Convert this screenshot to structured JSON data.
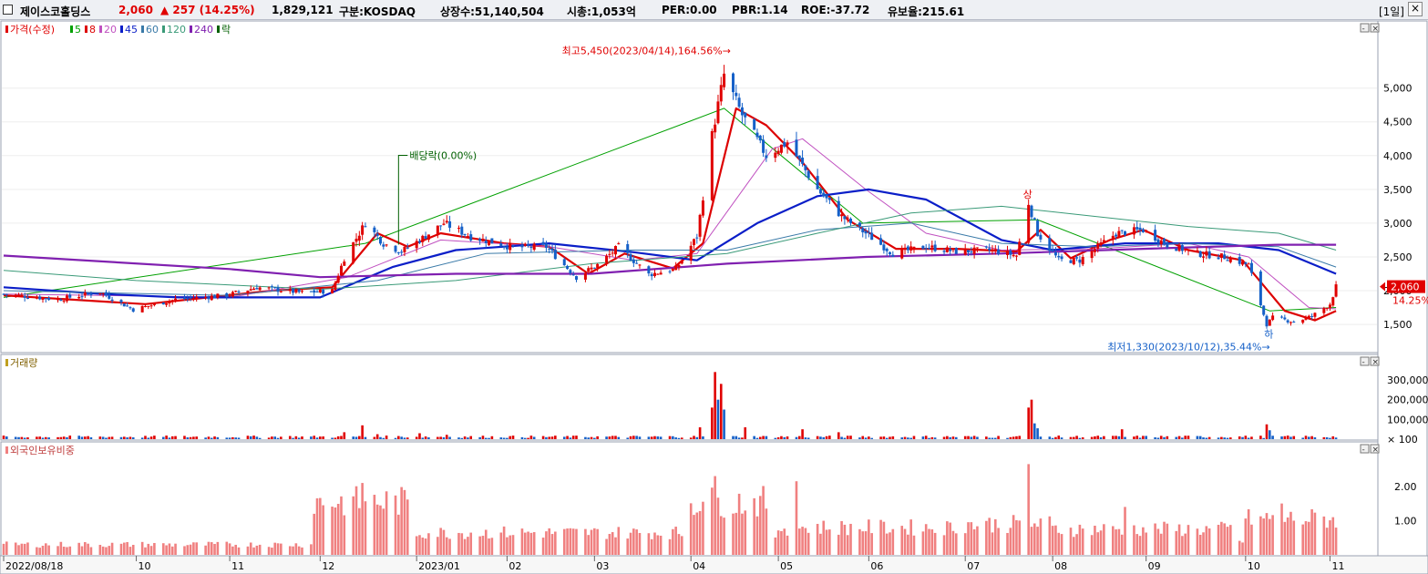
{
  "header": {
    "stock_name": "제이스코홀딩스",
    "price": "2,060",
    "change": "▲ 257 (14.25%)",
    "volume": "1,829,121",
    "market": "구분:KOSDAQ",
    "shares": "상장수:51,140,504",
    "market_cap": "시총:1,053억",
    "per": "PER:0.00",
    "pbr": "PBR:1.14",
    "roe": "ROE:-37.72",
    "float_ratio": "유보율:215.61",
    "period": "[1일]"
  },
  "colors": {
    "up": "#e00000",
    "down": "#1560c8",
    "ma5": "#00a000",
    "ma8": "#dd0000",
    "ma20": "#c050c0",
    "ma45": "#0a1ec8",
    "ma60": "#3a7aa8",
    "ma120": "#3a9a78",
    "ma240": "#8020b0",
    "ex_div": "#006000",
    "foreign": "#f08080"
  },
  "chart_data": [
    {
      "type": "candlestick",
      "legend": [
        {
          "label": "가격(수정)",
          "color": "#e00000"
        },
        {
          "label": "5",
          "color": "#00a000"
        },
        {
          "label": "8",
          "color": "#dd0000"
        },
        {
          "label": "20",
          "color": "#c050c0"
        },
        {
          "label": "45",
          "color": "#0a1ec8"
        },
        {
          "label": "60",
          "color": "#3a7aa8"
        },
        {
          "label": "120",
          "color": "#3a9a78"
        },
        {
          "label": "240",
          "color": "#8020b0"
        },
        {
          "label": "락",
          "color": "#006000"
        }
      ],
      "y_ticks": [
        1500,
        2000,
        2500,
        3000,
        3500,
        4000,
        4500,
        5000
      ],
      "y_tick_labels": [
        "1,500",
        "2,000",
        "2,500",
        "3,000",
        "3,500",
        "4,000",
        "4,500",
        "5,000"
      ],
      "ylim": [
        1150,
        5900
      ],
      "x_start": "2022-08-18",
      "x_end": "2023-11-06",
      "x_ticks": [
        {
          "date": "2022-08-18",
          "label": "2022/08/18"
        },
        {
          "date": "2022-10-01",
          "label": "10"
        },
        {
          "date": "2022-11-01",
          "label": "11"
        },
        {
          "date": "2022-12-01",
          "label": "12"
        },
        {
          "date": "2023-01-02",
          "label": "2023/01"
        },
        {
          "date": "2023-02-01",
          "label": "02"
        },
        {
          "date": "2023-03-02",
          "label": "03"
        },
        {
          "date": "2023-04-03",
          "label": "04"
        },
        {
          "date": "2023-05-02",
          "label": "05"
        },
        {
          "date": "2023-06-01",
          "label": "06"
        },
        {
          "date": "2023-07-03",
          "label": "07"
        },
        {
          "date": "2023-08-01",
          "label": "08"
        },
        {
          "date": "2023-09-01",
          "label": "09"
        },
        {
          "date": "2023-10-04",
          "label": "10"
        },
        {
          "date": "2023-11-01",
          "label": "11"
        }
      ],
      "close_points": [
        [
          "2022-08-18",
          1950
        ],
        [
          "2022-09-05",
          1870
        ],
        [
          "2022-09-19",
          1980
        ],
        [
          "2022-09-30",
          1720
        ],
        [
          "2022-10-14",
          1870
        ],
        [
          "2022-10-31",
          1930
        ],
        [
          "2022-11-10",
          2050
        ],
        [
          "2022-11-25",
          1970
        ],
        [
          "2022-12-05",
          2000
        ],
        [
          "2022-12-09",
          2480
        ],
        [
          "2022-12-16",
          3000
        ],
        [
          "2022-12-22",
          2700
        ],
        [
          "2022-12-28",
          2580
        ],
        [
          "2023-01-04",
          2780
        ],
        [
          "2023-01-11",
          3000
        ],
        [
          "2023-01-20",
          2800
        ],
        [
          "2023-02-03",
          2640
        ],
        [
          "2023-02-14",
          2650
        ],
        [
          "2023-02-24",
          2200
        ],
        [
          "2023-03-03",
          2380
        ],
        [
          "2023-03-10",
          2650
        ],
        [
          "2023-03-20",
          2240
        ],
        [
          "2023-03-29",
          2320
        ],
        [
          "2023-04-05",
          2800
        ],
        [
          "2023-04-10",
          4300
        ],
        [
          "2023-04-14",
          5200
        ],
        [
          "2023-04-20",
          4600
        ],
        [
          "2023-04-28",
          4000
        ],
        [
          "2023-05-05",
          4200
        ],
        [
          "2023-05-15",
          3500
        ],
        [
          "2023-05-23",
          3100
        ],
        [
          "2023-05-31",
          2850
        ],
        [
          "2023-06-09",
          2550
        ],
        [
          "2023-06-20",
          2650
        ],
        [
          "2023-06-30",
          2580
        ],
        [
          "2023-07-12",
          2600
        ],
        [
          "2023-07-20",
          2520
        ],
        [
          "2023-07-24",
          3300
        ],
        [
          "2023-07-27",
          2850
        ],
        [
          "2023-08-03",
          2450
        ],
        [
          "2023-08-10",
          2450
        ],
        [
          "2023-08-22",
          2850
        ],
        [
          "2023-08-31",
          2900
        ],
        [
          "2023-09-08",
          2680
        ],
        [
          "2023-09-18",
          2550
        ],
        [
          "2023-09-27",
          2500
        ],
        [
          "2023-10-05",
          2380
        ],
        [
          "2023-10-11",
          1500
        ],
        [
          "2023-10-13",
          1600
        ],
        [
          "2023-10-20",
          1540
        ],
        [
          "2023-10-26",
          1620
        ],
        [
          "2023-11-01",
          1803
        ],
        [
          "2023-11-03",
          2060
        ]
      ],
      "ma_series": [
        {
          "period": 5,
          "points": [
            [
              "2022-08-18",
              1900
            ],
            [
              "2022-12-16",
              2700
            ],
            [
              "2023-04-14",
              4700
            ],
            [
              "2023-05-30",
              3000
            ],
            [
              "2023-07-27",
              3050
            ],
            [
              "2023-10-12",
              1700
            ],
            [
              "2023-11-03",
              1750
            ]
          ]
        },
        {
          "period": 8,
          "points": [
            [
              "2022-08-18",
              1930
            ],
            [
              "2022-10-04",
              1800
            ],
            [
              "2022-11-15",
              2000
            ],
            [
              "2022-12-05",
              2050
            ],
            [
              "2022-12-20",
              2850
            ],
            [
              "2022-12-30",
              2650
            ],
            [
              "2023-01-10",
              2850
            ],
            [
              "2023-01-31",
              2700
            ],
            [
              "2023-02-15",
              2650
            ],
            [
              "2023-02-28",
              2250
            ],
            [
              "2023-03-12",
              2550
            ],
            [
              "2023-03-28",
              2330
            ],
            [
              "2023-04-07",
              2700
            ],
            [
              "2023-04-18",
              4700
            ],
            [
              "2023-04-28",
              4450
            ],
            [
              "2023-05-10",
              3900
            ],
            [
              "2023-05-25",
              3050
            ],
            [
              "2023-06-10",
              2620
            ],
            [
              "2023-06-30",
              2620
            ],
            [
              "2023-07-20",
              2580
            ],
            [
              "2023-07-28",
              2900
            ],
            [
              "2023-08-07",
              2480
            ],
            [
              "2023-08-20",
              2750
            ],
            [
              "2023-08-31",
              2900
            ],
            [
              "2023-09-15",
              2600
            ],
            [
              "2023-10-03",
              2450
            ],
            [
              "2023-10-17",
              1700
            ],
            [
              "2023-10-27",
              1560
            ],
            [
              "2023-11-03",
              1700
            ]
          ]
        },
        {
          "period": 20,
          "points": [
            [
              "2022-08-18",
              1950
            ],
            [
              "2022-11-01",
              1900
            ],
            [
              "2022-12-10",
              2200
            ],
            [
              "2023-01-10",
              2750
            ],
            [
              "2023-02-15",
              2650
            ],
            [
              "2023-03-15",
              2450
            ],
            [
              "2023-04-05",
              2550
            ],
            [
              "2023-04-30",
              4100
            ],
            [
              "2023-05-10",
              4250
            ],
            [
              "2023-05-31",
              3500
            ],
            [
              "2023-06-20",
              2850
            ],
            [
              "2023-07-15",
              2600
            ],
            [
              "2023-08-15",
              2620
            ],
            [
              "2023-09-15",
              2700
            ],
            [
              "2023-10-05",
              2500
            ],
            [
              "2023-10-25",
              1750
            ],
            [
              "2023-11-03",
              1730
            ]
          ]
        },
        {
          "period": 45,
          "points": [
            [
              "2022-08-18",
              2050
            ],
            [
              "2022-09-20",
              1950
            ],
            [
              "2022-10-15",
              1900
            ],
            [
              "2022-12-01",
              1900
            ],
            [
              "2022-12-25",
              2350
            ],
            [
              "2023-01-15",
              2600
            ],
            [
              "2023-02-15",
              2700
            ],
            [
              "2023-03-15",
              2570
            ],
            [
              "2023-04-05",
              2450
            ],
            [
              "2023-04-25",
              3000
            ],
            [
              "2023-05-15",
              3400
            ],
            [
              "2023-06-01",
              3500
            ],
            [
              "2023-06-20",
              3350
            ],
            [
              "2023-07-15",
              2750
            ],
            [
              "2023-08-01",
              2600
            ],
            [
              "2023-08-25",
              2700
            ],
            [
              "2023-09-25",
              2700
            ],
            [
              "2023-10-15",
              2600
            ],
            [
              "2023-11-03",
              2250
            ]
          ]
        },
        {
          "period": 60,
          "points": [
            [
              "2022-08-18",
              2000
            ],
            [
              "2022-11-01",
              1930
            ],
            [
              "2022-12-20",
              2150
            ],
            [
              "2023-01-25",
              2550
            ],
            [
              "2023-03-15",
              2600
            ],
            [
              "2023-04-15",
              2600
            ],
            [
              "2023-05-15",
              2900
            ],
            [
              "2023-06-15",
              3000
            ],
            [
              "2023-07-15",
              2700
            ],
            [
              "2023-08-15",
              2650
            ],
            [
              "2023-09-15",
              2700
            ],
            [
              "2023-10-15",
              2650
            ],
            [
              "2023-11-03",
              2350
            ]
          ]
        },
        {
          "period": 120,
          "points": [
            [
              "2022-08-18",
              2300
            ],
            [
              "2022-10-01",
              2150
            ],
            [
              "2022-12-01",
              2020
            ],
            [
              "2023-01-15",
              2150
            ],
            [
              "2023-03-01",
              2400
            ],
            [
              "2023-04-15",
              2550
            ],
            [
              "2023-05-15",
              2850
            ],
            [
              "2023-06-15",
              3150
            ],
            [
              "2023-07-15",
              3250
            ],
            [
              "2023-08-15",
              3100
            ],
            [
              "2023-09-15",
              2950
            ],
            [
              "2023-10-15",
              2850
            ],
            [
              "2023-11-03",
              2600
            ]
          ]
        },
        {
          "period": 240,
          "points": [
            [
              "2022-08-18",
              2520
            ],
            [
              "2022-11-01",
              2320
            ],
            [
              "2022-12-01",
              2200
            ],
            [
              "2023-01-15",
              2250
            ],
            [
              "2023-03-01",
              2250
            ],
            [
              "2023-04-15",
              2400
            ],
            [
              "2023-05-31",
              2500
            ],
            [
              "2023-07-15",
              2550
            ],
            [
              "2023-08-31",
              2620
            ],
            [
              "2023-10-15",
              2680
            ],
            [
              "2023-11-03",
              2680
            ]
          ]
        }
      ],
      "annotations": [
        {
          "text": "최고5,450(2023/04/14),164.56%→",
          "date": "2023-04-14",
          "value": 5450
        },
        {
          "text": "배당락(0.00%)",
          "date": "2022-12-27",
          "value": 2600
        },
        {
          "text": "최저1,330(2023/10/12),35.44%→",
          "date": "2023-10-12",
          "value": 1330
        },
        {
          "text": "상",
          "date": "2023-07-24",
          "value": 3350
        },
        {
          "text": "하",
          "date": "2023-10-12",
          "value": 1520
        }
      ],
      "current_price_label": "2,060",
      "current_change_label": "14.25%"
    },
    {
      "type": "bar",
      "title": "거래량",
      "y_ticks": [
        100,
        100000,
        200000,
        300000
      ],
      "y_tick_labels": [
        "× 100",
        "100,000",
        "200,000",
        "300,000"
      ],
      "ylim": [
        0,
        360000
      ],
      "spikes": [
        [
          "2022-12-09",
          35000
        ],
        [
          "2022-12-15",
          70000
        ],
        [
          "2022-12-20",
          25000
        ],
        [
          "2023-01-03",
          30000
        ],
        [
          "2023-01-12",
          22000
        ],
        [
          "2023-04-06",
          60000
        ],
        [
          "2023-04-10",
          160000
        ],
        [
          "2023-04-11",
          340000
        ],
        [
          "2023-04-12",
          200000
        ],
        [
          "2023-04-13",
          280000
        ],
        [
          "2023-04-14",
          150000
        ],
        [
          "2023-04-21",
          60000
        ],
        [
          "2023-05-10",
          50000
        ],
        [
          "2023-05-22",
          35000
        ],
        [
          "2023-07-24",
          160000
        ],
        [
          "2023-07-25",
          200000
        ],
        [
          "2023-07-26",
          80000
        ],
        [
          "2023-07-27",
          55000
        ],
        [
          "2023-08-24",
          50000
        ],
        [
          "2023-10-11",
          75000
        ],
        [
          "2023-10-12",
          45000
        ]
      ],
      "base_level": 14000
    },
    {
      "type": "bar",
      "title": "외국인보유비중",
      "y_ticks": [
        1.0,
        2.0
      ],
      "y_tick_labels": [
        "1.00",
        "2.00"
      ],
      "ylim": [
        0,
        2.9
      ],
      "series": [
        {
          "segment": [
            "2022-08-18",
            "2022-11-28"
          ],
          "level": 0.3
        },
        {
          "segment": [
            "2022-11-29",
            "2022-12-30"
          ],
          "level": 1.55
        },
        {
          "segment": [
            "2023-01-02",
            "2023-03-31"
          ],
          "level": 0.65
        },
        {
          "segment": [
            "2023-04-03",
            "2023-04-28"
          ],
          "level": 1.55
        },
        {
          "segment": [
            "2023-05-02",
            "2023-06-30"
          ],
          "level": 0.8
        },
        {
          "segment": [
            "2023-07-03",
            "2023-07-31"
          ],
          "level": 0.9
        },
        {
          "segment": [
            "2023-08-01",
            "2023-09-29"
          ],
          "level": 0.75
        },
        {
          "segment": [
            "2023-10-04",
            "2023-11-03"
          ],
          "level": 1.05
        }
      ],
      "peaks": [
        [
          "2022-12-15",
          2.1
        ],
        [
          "2023-04-11",
          2.3
        ],
        [
          "2023-05-08",
          2.15
        ],
        [
          "2023-07-24",
          2.65
        ],
        [
          "2023-08-25",
          1.4
        ],
        [
          "2023-10-16",
          1.5
        ]
      ]
    }
  ]
}
